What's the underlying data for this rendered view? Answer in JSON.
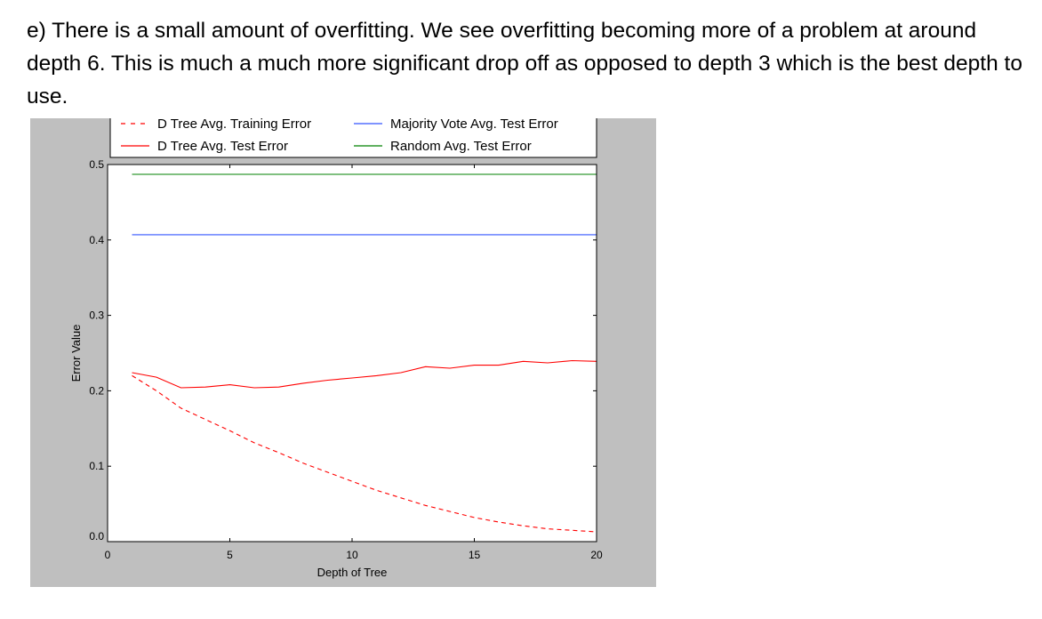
{
  "answer": {
    "text": "e) There is a small amount of overfitting. We see overfitting becoming more of a problem at around depth 6. This is much a much more significant drop off as opposed to depth 3 which is the best depth to use."
  },
  "colors": {
    "panel_background": "#bfbfbf",
    "plot_background": "#ffffff",
    "train_series": "#ff0000",
    "test_series": "#ff0000",
    "majority_series": "#3355ff",
    "random_series": "#008000"
  },
  "chart_data": {
    "type": "line",
    "title": "",
    "xlabel": "Depth of Tree",
    "ylabel": "Error Value",
    "xlim": [
      0,
      20
    ],
    "ylim": [
      0.0,
      0.5
    ],
    "xticks": [
      0,
      5,
      10,
      15,
      20
    ],
    "yticks": [
      0.0,
      0.1,
      0.2,
      0.3,
      0.4,
      0.5
    ],
    "xtick_labels": [
      "0",
      "5",
      "10",
      "15",
      "20"
    ],
    "ytick_labels": [
      "0.0",
      "0.1",
      "0.2",
      "0.3",
      "0.4",
      "0.5"
    ],
    "grid": false,
    "legend_position": "top",
    "x": [
      1,
      2,
      3,
      4,
      5,
      6,
      7,
      8,
      9,
      10,
      11,
      12,
      13,
      14,
      15,
      16,
      17,
      18,
      19,
      20
    ],
    "series": [
      {
        "name": "D Tree Avg. Training Error",
        "style": "dashed",
        "color": "#ff0000",
        "values": [
          0.22,
          0.2,
          0.177,
          0.162,
          0.147,
          0.131,
          0.118,
          0.104,
          0.092,
          0.08,
          0.068,
          0.058,
          0.048,
          0.04,
          0.032,
          0.026,
          0.021,
          0.017,
          0.015,
          0.013
        ]
      },
      {
        "name": "D Tree Avg. Test Error",
        "style": "solid",
        "color": "#ff0000",
        "values": [
          0.224,
          0.218,
          0.204,
          0.205,
          0.208,
          0.204,
          0.205,
          0.21,
          0.214,
          0.217,
          0.22,
          0.224,
          0.232,
          0.23,
          0.234,
          0.234,
          0.239,
          0.237,
          0.24,
          0.239
        ]
      },
      {
        "name": "Majority Vote Avg. Test Error",
        "style": "solid",
        "color": "#3355ff",
        "values": [
          0.407,
          0.407,
          0.407,
          0.407,
          0.407,
          0.407,
          0.407,
          0.407,
          0.407,
          0.407,
          0.407,
          0.407,
          0.407,
          0.407,
          0.407,
          0.407,
          0.407,
          0.407,
          0.407,
          0.407
        ]
      },
      {
        "name": "Random Avg. Test Error",
        "style": "solid",
        "color": "#008000",
        "values": [
          0.487,
          0.487,
          0.487,
          0.487,
          0.487,
          0.487,
          0.487,
          0.487,
          0.487,
          0.487,
          0.487,
          0.487,
          0.487,
          0.487,
          0.487,
          0.487,
          0.487,
          0.487,
          0.487,
          0.487
        ]
      }
    ]
  }
}
